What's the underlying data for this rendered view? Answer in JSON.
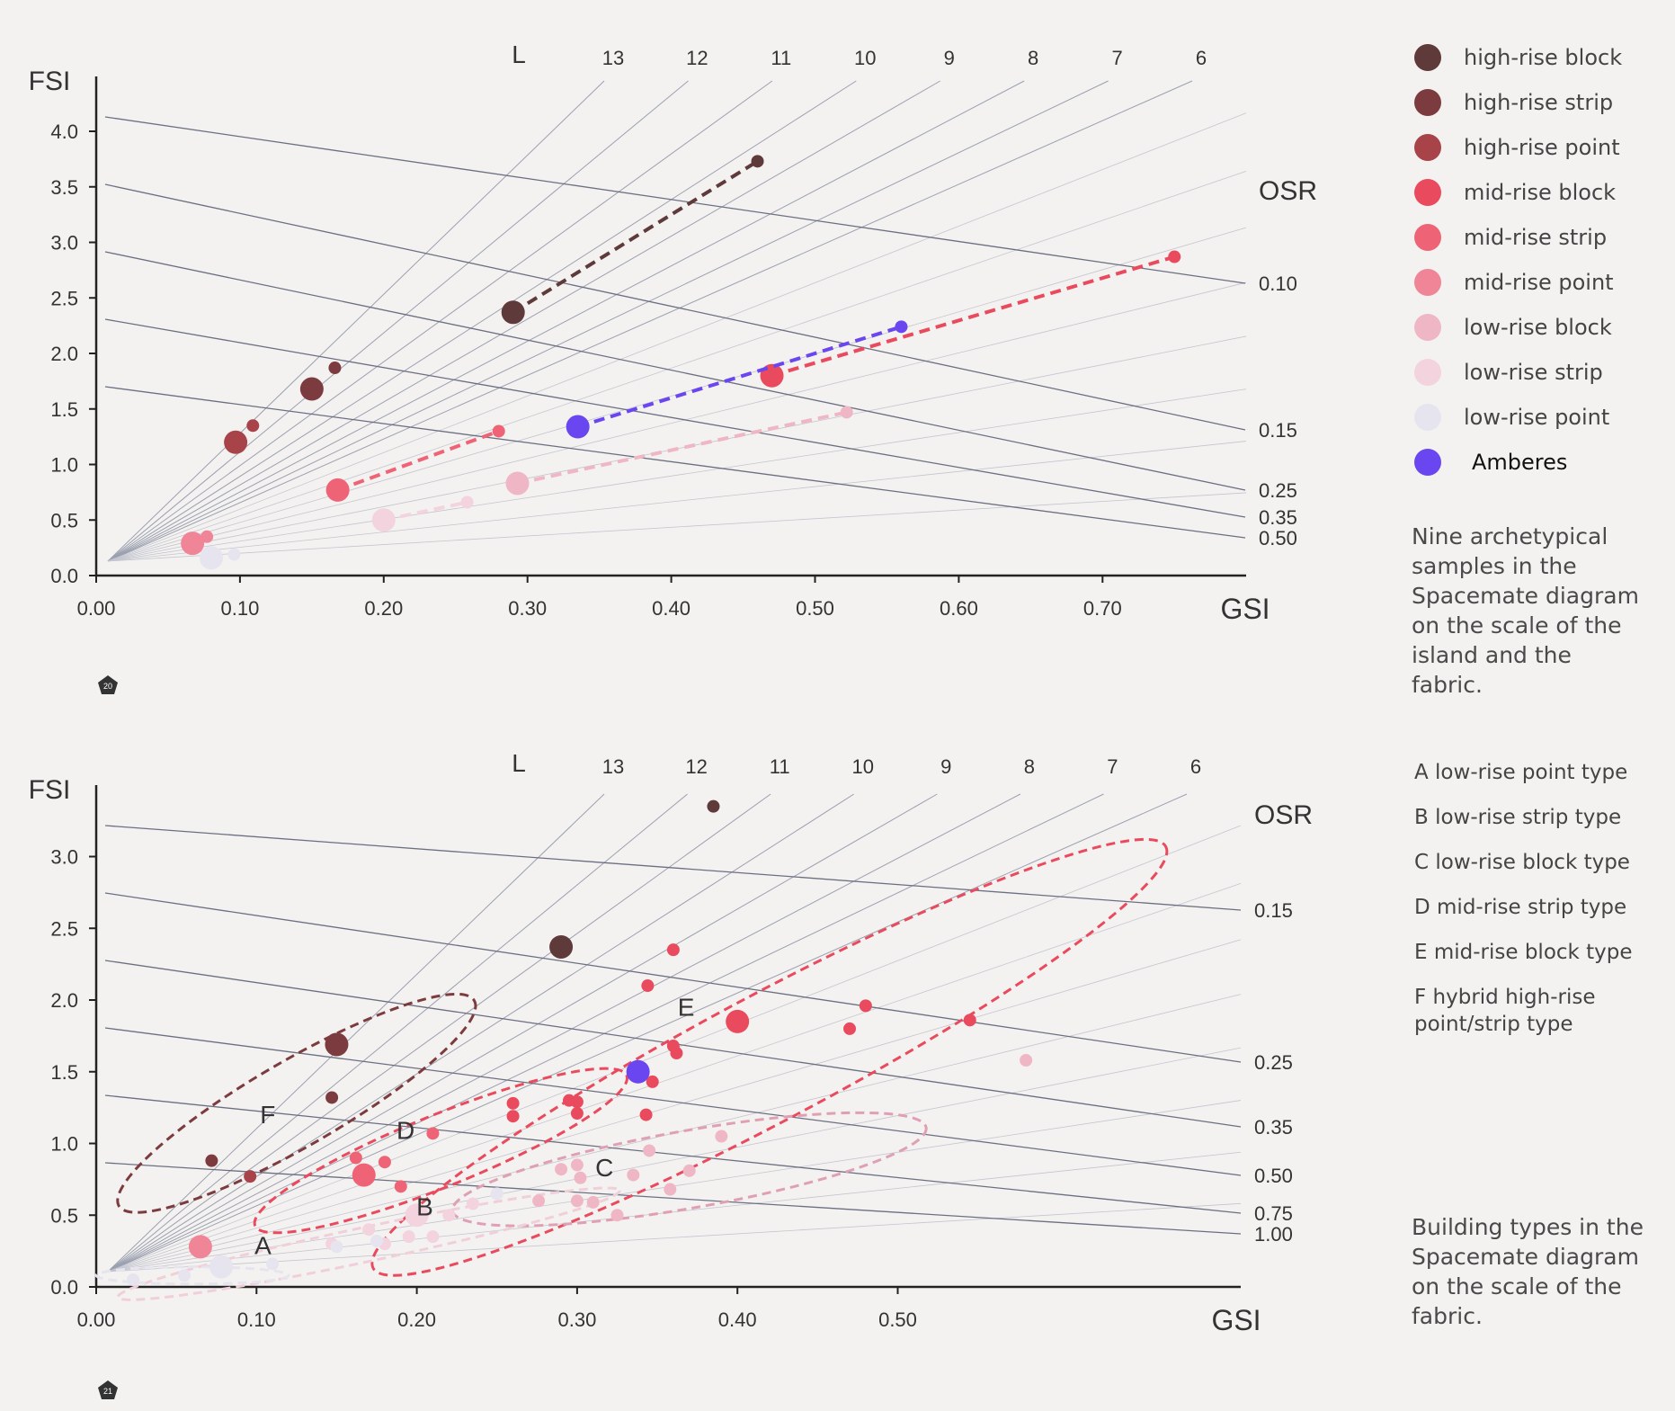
{
  "legend": {
    "items": [
      {
        "label": "high-rise block",
        "color": "#5e3a3a"
      },
      {
        "label": "high-rise strip",
        "color": "#7c3c3f"
      },
      {
        "label": "high-rise point",
        "color": "#a8434a"
      },
      {
        "label": "mid-rise block",
        "color": "#e94a5d"
      },
      {
        "label": "mid-rise strip",
        "color": "#ee6476"
      },
      {
        "label": "mid-rise point",
        "color": "#f08598"
      },
      {
        "label": "low-rise block",
        "color": "#efb7c6"
      },
      {
        "label": "low-rise strip",
        "color": "#f3d3dd"
      },
      {
        "label": "low-rise point",
        "color": "#e6e4ee"
      },
      {
        "label": "Amberes",
        "color": "#6a46f0"
      }
    ],
    "caption": "Nine archetypical samples in the Spacemate diagram on the scale of the island and the fabric."
  },
  "types_legend": {
    "items": [
      "A  low-rise point type",
      "B  low-rise strip type",
      "C  low-rise block type",
      "D  mid-rise strip type",
      "E  mid-rise block type",
      "F  hybrid high-rise point/strip type"
    ],
    "caption": "Building types in the Spacemate diagram on the scale of the fabric."
  },
  "badges": {
    "top": "20",
    "bottom": "21"
  },
  "chart_data": [
    {
      "type": "scatter",
      "xlabel": "GSI",
      "ylabel": "FSI",
      "xlim": [
        0,
        0.8
      ],
      "ylim": [
        0,
        4.5
      ],
      "x_ticks": [
        "0.00",
        "0.10",
        "0.20",
        "0.30",
        "0.40",
        "0.50",
        "0.60",
        "0.70"
      ],
      "y_ticks": [
        "0.0",
        "0.5",
        "1.0",
        "1.5",
        "2.0",
        "2.5",
        "3.0",
        "3.5",
        "4.0"
      ],
      "l_axis_label": "L",
      "l_lines": [
        13,
        12,
        11,
        10,
        9,
        8,
        7,
        6
      ],
      "osr_label": "OSR",
      "osr_lines": [
        "0.10",
        "0.15",
        "0.25",
        "0.35",
        "0.50"
      ],
      "series": [
        {
          "name": "high-rise block",
          "color": "#5e3a3a",
          "dashed": true,
          "points": [
            {
              "x": 0.29,
              "y": 2.37,
              "big": true
            },
            {
              "x": 0.46,
              "y": 3.73,
              "big": false
            }
          ]
        },
        {
          "name": "high-rise strip",
          "color": "#7c3c3f",
          "dashed": false,
          "points": [
            {
              "x": 0.15,
              "y": 1.68,
              "big": true
            },
            {
              "x": 0.166,
              "y": 1.87,
              "big": false
            }
          ]
        },
        {
          "name": "high-rise point",
          "color": "#a8434a",
          "dashed": false,
          "points": [
            {
              "x": 0.097,
              "y": 1.2,
              "big": true
            },
            {
              "x": 0.109,
              "y": 1.35,
              "big": false
            }
          ]
        },
        {
          "name": "mid-rise block",
          "color": "#e94a5d",
          "dashed": true,
          "points": [
            {
              "x": 0.47,
              "y": 1.8,
              "big": true
            },
            {
              "x": 0.75,
              "y": 2.87,
              "big": false
            }
          ]
        },
        {
          "name": "mid-rise strip",
          "color": "#ee6476",
          "dashed": true,
          "points": [
            {
              "x": 0.168,
              "y": 0.77,
              "big": true
            },
            {
              "x": 0.28,
              "y": 1.3,
              "big": false
            }
          ]
        },
        {
          "name": "mid-rise point",
          "color": "#f08598",
          "dashed": false,
          "points": [
            {
              "x": 0.067,
              "y": 0.29,
              "big": true
            },
            {
              "x": 0.077,
              "y": 0.35,
              "big": false
            }
          ]
        },
        {
          "name": "low-rise block",
          "color": "#efb7c6",
          "dashed": true,
          "points": [
            {
              "x": 0.293,
              "y": 0.83,
              "big": true
            },
            {
              "x": 0.522,
              "y": 1.47,
              "big": false
            }
          ]
        },
        {
          "name": "low-rise strip",
          "color": "#f3d3dd",
          "dashed": true,
          "points": [
            {
              "x": 0.2,
              "y": 0.5,
              "big": true
            },
            {
              "x": 0.258,
              "y": 0.66,
              "big": false
            }
          ]
        },
        {
          "name": "low-rise point",
          "color": "#e6e4ee",
          "dashed": false,
          "points": [
            {
              "x": 0.08,
              "y": 0.16,
              "big": true
            },
            {
              "x": 0.096,
              "y": 0.19,
              "big": false
            }
          ]
        },
        {
          "name": "Amberes",
          "color": "#6a46f0",
          "dashed": true,
          "points": [
            {
              "x": 0.335,
              "y": 1.34,
              "big": true
            },
            {
              "x": 0.56,
              "y": 2.24,
              "big": false
            }
          ]
        }
      ]
    },
    {
      "type": "scatter",
      "xlabel": "GSI",
      "ylabel": "FSI",
      "xlim": [
        0,
        0.6
      ],
      "ylim": [
        0,
        3.5
      ],
      "x_ticks": [
        "0.00",
        "0.10",
        "0.20",
        "0.30",
        "0.40",
        "0.50"
      ],
      "y_ticks": [
        "0.0",
        "0.5",
        "1.0",
        "1.5",
        "2.0",
        "2.5",
        "3.0"
      ],
      "l_axis_label": "L",
      "l_lines": [
        13,
        12,
        11,
        10,
        9,
        8,
        7,
        6
      ],
      "osr_label": "OSR",
      "osr_lines": [
        "0.15",
        "0.25",
        "0.35",
        "0.50",
        "0.75",
        "1.00"
      ],
      "group_labels": [
        {
          "label": "A",
          "x": 0.104,
          "y": 0.23
        },
        {
          "label": "B",
          "x": 0.205,
          "y": 0.5
        },
        {
          "label": "C",
          "x": 0.317,
          "y": 0.77
        },
        {
          "label": "D",
          "x": 0.193,
          "y": 1.03
        },
        {
          "label": "E",
          "x": 0.368,
          "y": 1.89
        },
        {
          "label": "F",
          "x": 0.107,
          "y": 1.14
        }
      ],
      "groups": [
        {
          "label": "F",
          "color": "#7c3c3f",
          "cx": 0.125,
          "cy": 1.28,
          "rx": 0.128,
          "ry": 0.3,
          "rot": -30
        },
        {
          "label": "D",
          "color": "#e94a5d",
          "cx": 0.215,
          "cy": 0.95,
          "rx": 0.125,
          "ry": 0.25,
          "rot": -22
        },
        {
          "label": "E",
          "color": "#e94a5d",
          "cx": 0.42,
          "cy": 1.6,
          "rx": 0.28,
          "ry": 0.44,
          "rot": -28
        },
        {
          "label": "C",
          "color": "#e0a0b4",
          "cx": 0.37,
          "cy": 0.82,
          "rx": 0.15,
          "ry": 0.27,
          "rot": -10
        },
        {
          "label": "B",
          "color": "#f0cfd9",
          "cx": 0.17,
          "cy": 0.3,
          "rx": 0.16,
          "ry": 0.12,
          "rot": -12
        },
        {
          "label": "A",
          "color": "#e6e4ee",
          "cx": 0.06,
          "cy": 0.08,
          "rx": 0.06,
          "ry": 0.06,
          "rot": 0
        }
      ],
      "points": [
        {
          "x": 0.385,
          "y": 3.35,
          "color": "#5e3a3a",
          "big": false
        },
        {
          "x": 0.29,
          "y": 2.37,
          "color": "#5e3a3a",
          "big": true
        },
        {
          "x": 0.15,
          "y": 1.69,
          "color": "#7c3c3f",
          "big": true
        },
        {
          "x": 0.147,
          "y": 1.32,
          "color": "#7c3c3f",
          "big": false
        },
        {
          "x": 0.072,
          "y": 0.88,
          "color": "#7c3c3f",
          "big": false
        },
        {
          "x": 0.096,
          "y": 0.77,
          "color": "#a8434a",
          "big": false
        },
        {
          "x": 0.36,
          "y": 2.35,
          "color": "#e94a5d",
          "big": false
        },
        {
          "x": 0.344,
          "y": 2.1,
          "color": "#e94a5d",
          "big": false
        },
        {
          "x": 0.4,
          "y": 1.85,
          "color": "#e94a5d",
          "big": true
        },
        {
          "x": 0.36,
          "y": 1.68,
          "color": "#e94a5d",
          "big": false
        },
        {
          "x": 0.362,
          "y": 1.63,
          "color": "#e94a5d",
          "big": false
        },
        {
          "x": 0.347,
          "y": 1.43,
          "color": "#e94a5d",
          "big": false
        },
        {
          "x": 0.48,
          "y": 1.96,
          "color": "#e94a5d",
          "big": false
        },
        {
          "x": 0.47,
          "y": 1.8,
          "color": "#e94a5d",
          "big": false
        },
        {
          "x": 0.545,
          "y": 1.86,
          "color": "#e94a5d",
          "big": false
        },
        {
          "x": 0.26,
          "y": 1.28,
          "color": "#e94a5d",
          "big": false
        },
        {
          "x": 0.26,
          "y": 1.19,
          "color": "#e94a5d",
          "big": false
        },
        {
          "x": 0.295,
          "y": 1.3,
          "color": "#e94a5d",
          "big": false
        },
        {
          "x": 0.3,
          "y": 1.29,
          "color": "#e94a5d",
          "big": false
        },
        {
          "x": 0.3,
          "y": 1.21,
          "color": "#e94a5d",
          "big": false
        },
        {
          "x": 0.343,
          "y": 1.2,
          "color": "#e94a5d",
          "big": false
        },
        {
          "x": 0.21,
          "y": 1.07,
          "color": "#ee6476",
          "big": false
        },
        {
          "x": 0.162,
          "y": 0.9,
          "color": "#ee6476",
          "big": false
        },
        {
          "x": 0.18,
          "y": 0.87,
          "color": "#ee6476",
          "big": false
        },
        {
          "x": 0.167,
          "y": 0.78,
          "color": "#ee6476",
          "big": true
        },
        {
          "x": 0.19,
          "y": 0.7,
          "color": "#ee6476",
          "big": false
        },
        {
          "x": 0.065,
          "y": 0.28,
          "color": "#f08598",
          "big": true
        },
        {
          "x": 0.58,
          "y": 1.58,
          "color": "#efb7c6",
          "big": false
        },
        {
          "x": 0.39,
          "y": 1.05,
          "color": "#efb7c6",
          "big": false
        },
        {
          "x": 0.345,
          "y": 0.95,
          "color": "#efb7c6",
          "big": false
        },
        {
          "x": 0.37,
          "y": 0.81,
          "color": "#efb7c6",
          "big": false
        },
        {
          "x": 0.335,
          "y": 0.78,
          "color": "#efb7c6",
          "big": false
        },
        {
          "x": 0.358,
          "y": 0.68,
          "color": "#efb7c6",
          "big": false
        },
        {
          "x": 0.3,
          "y": 0.85,
          "color": "#efb7c6",
          "big": false
        },
        {
          "x": 0.29,
          "y": 0.82,
          "color": "#efb7c6",
          "big": false
        },
        {
          "x": 0.302,
          "y": 0.76,
          "color": "#efb7c6",
          "big": false
        },
        {
          "x": 0.276,
          "y": 0.6,
          "color": "#efb7c6",
          "big": false
        },
        {
          "x": 0.3,
          "y": 0.6,
          "color": "#efb7c6",
          "big": false
        },
        {
          "x": 0.31,
          "y": 0.59,
          "color": "#efb7c6",
          "big": false
        },
        {
          "x": 0.325,
          "y": 0.5,
          "color": "#efb7c6",
          "big": false
        },
        {
          "x": 0.2,
          "y": 0.5,
          "color": "#f3d3dd",
          "big": true
        },
        {
          "x": 0.22,
          "y": 0.5,
          "color": "#f3d3dd",
          "big": false
        },
        {
          "x": 0.235,
          "y": 0.58,
          "color": "#f3d3dd",
          "big": false
        },
        {
          "x": 0.25,
          "y": 0.65,
          "color": "#f3d3dd",
          "big": false
        },
        {
          "x": 0.17,
          "y": 0.4,
          "color": "#f3d3dd",
          "big": false
        },
        {
          "x": 0.195,
          "y": 0.35,
          "color": "#f3d3dd",
          "big": false
        },
        {
          "x": 0.147,
          "y": 0.3,
          "color": "#f3d3dd",
          "big": false
        },
        {
          "x": 0.18,
          "y": 0.3,
          "color": "#f3d3dd",
          "big": false
        },
        {
          "x": 0.21,
          "y": 0.35,
          "color": "#f3d3dd",
          "big": false
        },
        {
          "x": 0.078,
          "y": 0.14,
          "color": "#e6e4ee",
          "big": true
        },
        {
          "x": 0.055,
          "y": 0.08,
          "color": "#e6e4ee",
          "big": false
        },
        {
          "x": 0.023,
          "y": 0.05,
          "color": "#e6e4ee",
          "big": false
        },
        {
          "x": 0.11,
          "y": 0.16,
          "color": "#e6e4ee",
          "big": false
        },
        {
          "x": 0.15,
          "y": 0.28,
          "color": "#e6e4ee",
          "big": false
        },
        {
          "x": 0.175,
          "y": 0.32,
          "color": "#e6e4ee",
          "big": false
        },
        {
          "x": 0.25,
          "y": 0.65,
          "color": "#e6e4ee",
          "big": false
        },
        {
          "x": 0.338,
          "y": 1.5,
          "color": "#6a46f0",
          "big": true
        }
      ]
    }
  ]
}
